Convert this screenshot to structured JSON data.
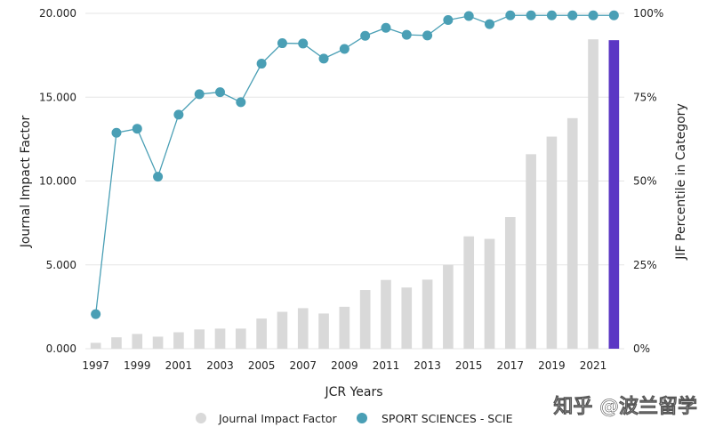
{
  "chart_data": {
    "type": "bar+line",
    "categories": [
      "1997",
      "1998",
      "1999",
      "2000",
      "2001",
      "2002",
      "2003",
      "2004",
      "2005",
      "2006",
      "2007",
      "2008",
      "2009",
      "2010",
      "2011",
      "2012",
      "2013",
      "2014",
      "2015",
      "2016",
      "2017",
      "2018",
      "2019",
      "2020",
      "2021",
      "2022"
    ],
    "x_tick_labels": [
      "1997",
      "1999",
      "2001",
      "2003",
      "2005",
      "2007",
      "2009",
      "2011",
      "2013",
      "2015",
      "2017",
      "2019",
      "2021"
    ],
    "xlabel": "JCR Years",
    "ylabel_left": "Journal Impact Factor",
    "ylabel_right": "JIF Percentile in Category",
    "ylim_left": [
      0,
      20
    ],
    "ylim_right": [
      0,
      100
    ],
    "y_ticks_left": [
      "0.000",
      "5.000",
      "10.000",
      "15.000",
      "20.000"
    ],
    "y_ticks_right": [
      "0%",
      "25%",
      "50%",
      "75%",
      "100%"
    ],
    "series": [
      {
        "name": "Journal Impact Factor",
        "type": "bar",
        "axis": "left",
        "color": "#d9d9d9",
        "highlight_color": "#5b36c4",
        "highlight_index": 25,
        "values": [
          0.35,
          0.68,
          0.88,
          0.72,
          0.98,
          1.15,
          1.2,
          1.2,
          1.8,
          2.2,
          2.42,
          2.1,
          2.5,
          3.5,
          4.1,
          3.65,
          4.12,
          5.0,
          6.7,
          6.55,
          7.85,
          11.6,
          12.65,
          13.75,
          18.45,
          18.4
        ]
      },
      {
        "name": "SPORT SCIENCES - SCIE",
        "type": "line",
        "axis": "right",
        "color": "#4a9fb5",
        "values": [
          10.3,
          64.4,
          65.6,
          51.3,
          69.8,
          75.9,
          76.5,
          73.5,
          85.0,
          91.1,
          91.0,
          86.5,
          89.4,
          93.3,
          95.7,
          93.6,
          93.4,
          98.0,
          99.2,
          96.8,
          99.4,
          99.4,
          99.4,
          99.4,
          99.4,
          99.4
        ]
      }
    ],
    "legend": {
      "placement": "bottom",
      "items": [
        {
          "label": "Journal Impact Factor",
          "color": "#d9d9d9"
        },
        {
          "label": "SPORT SCIENCES - SCIE",
          "color": "#4a9fb5"
        }
      ]
    },
    "grid": true
  },
  "watermark": {
    "text": "知乎 @波兰留学"
  }
}
